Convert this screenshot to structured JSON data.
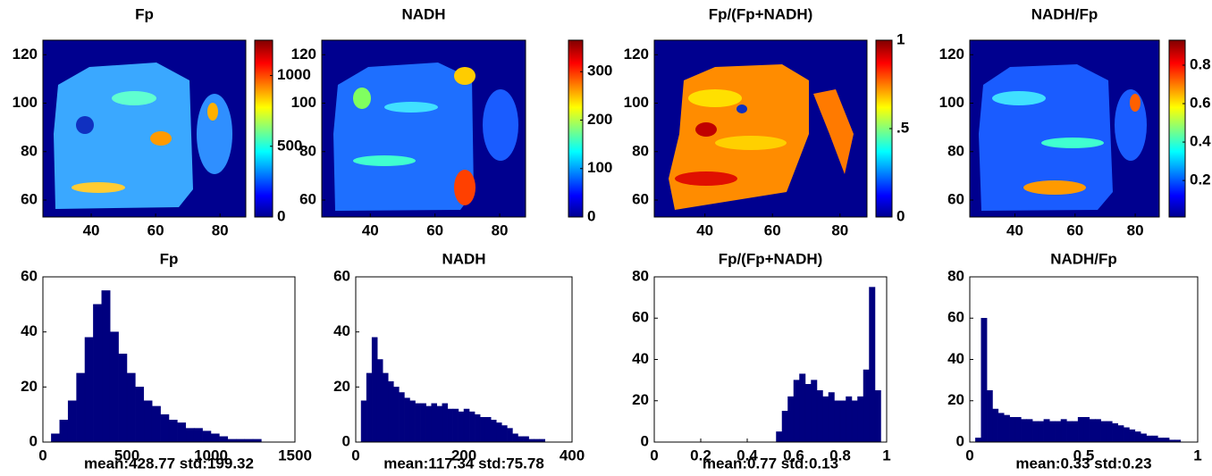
{
  "chart_data": [
    {
      "type": "heatmap",
      "title": "Fp",
      "xlim": [
        25,
        88
      ],
      "ylim": [
        53,
        126
      ],
      "xticks": [
        40,
        60,
        80
      ],
      "yticks": [
        60,
        80,
        100,
        120
      ],
      "clim": [
        0,
        1250
      ],
      "cticks": [
        0,
        500,
        1000
      ]
    },
    {
      "type": "heatmap",
      "title": "NADH",
      "xlim": [
        25,
        88
      ],
      "ylim": [
        53,
        126
      ],
      "xticks": [
        40,
        60,
        80
      ],
      "yticks": [
        60,
        80,
        100,
        120
      ],
      "clim": [
        0,
        365
      ],
      "cticks": [
        0,
        100,
        200,
        300
      ]
    },
    {
      "type": "heatmap",
      "title": "Fp/(Fp+NADH)",
      "xlim": [
        25,
        88
      ],
      "ylim": [
        53,
        126
      ],
      "xticks": [
        40,
        60,
        80
      ],
      "yticks": [
        60,
        80,
        100,
        120
      ],
      "clim": [
        0,
        1
      ],
      "cticks": [
        0,
        {
          "value": 0.5,
          "label": ".5"
        },
        1
      ]
    },
    {
      "type": "heatmap",
      "title": "NADH/Fp",
      "xlim": [
        25,
        88
      ],
      "ylim": [
        53,
        126
      ],
      "xticks": [
        40,
        60,
        80
      ],
      "yticks": [
        60,
        80,
        100,
        120
      ],
      "clim": [
        0.01,
        0.93
      ],
      "cticks": [
        0.2,
        0.4,
        0.6,
        0.8
      ]
    },
    {
      "type": "histogram",
      "title": "Fp",
      "xlabel": "mean:428.77 std:199.32",
      "color": "#00007f",
      "bins": [
        0,
        50,
        100,
        150,
        200,
        250,
        300,
        350,
        400,
        450,
        500,
        550,
        600,
        650,
        700,
        750,
        800,
        850,
        900,
        950,
        1000,
        1050,
        1100,
        1150,
        1200,
        1250,
        1300,
        1350,
        1400,
        1450,
        1500
      ],
      "values": [
        0,
        3,
        8,
        15,
        25,
        38,
        50,
        55,
        40,
        32,
        25,
        20,
        15,
        13,
        10,
        8,
        7,
        5,
        5,
        4,
        3,
        2,
        1,
        1,
        1,
        1,
        0,
        0,
        0,
        0
      ],
      "xlim": [
        0,
        1500
      ],
      "ylim": [
        0,
        60
      ],
      "xticks": [
        0,
        500,
        1000,
        1500
      ],
      "yticks": [
        0,
        20,
        40,
        60
      ]
    },
    {
      "type": "histogram",
      "title": "NADH",
      "xlabel": "mean:117.34 std:75.78",
      "color": "#00007f",
      "bins": [
        0,
        10,
        20,
        30,
        40,
        50,
        60,
        70,
        80,
        90,
        100,
        110,
        120,
        130,
        140,
        150,
        160,
        170,
        180,
        190,
        200,
        210,
        220,
        230,
        240,
        250,
        260,
        270,
        280,
        290,
        300,
        310,
        320,
        330,
        340,
        350,
        360,
        370,
        380,
        390,
        400
      ],
      "values": [
        0,
        15,
        25,
        38,
        30,
        25,
        22,
        20,
        18,
        16,
        15,
        14,
        14,
        13,
        14,
        13,
        14,
        12,
        12,
        11,
        12,
        11,
        10,
        9,
        9,
        8,
        7,
        6,
        5,
        3,
        2,
        2,
        1,
        1,
        1,
        0,
        0,
        0,
        0,
        0
      ],
      "xlim": [
        0,
        400
      ],
      "ylim": [
        0,
        60
      ],
      "xticks": [
        0,
        200,
        400
      ],
      "yticks": [
        0,
        20,
        40,
        60
      ]
    },
    {
      "type": "histogram",
      "title": "Fp/(Fp+NADH)",
      "xlabel": "mean:0.77 std:0.13",
      "color": "#00007f",
      "bins": [
        0,
        0.025,
        0.05,
        0.075,
        0.1,
        0.125,
        0.15,
        0.175,
        0.2,
        0.225,
        0.25,
        0.275,
        0.3,
        0.325,
        0.35,
        0.375,
        0.4,
        0.425,
        0.45,
        0.475,
        0.5,
        0.525,
        0.55,
        0.575,
        0.6,
        0.625,
        0.65,
        0.675,
        0.7,
        0.725,
        0.75,
        0.775,
        0.8,
        0.825,
        0.85,
        0.875,
        0.9,
        0.925,
        0.95,
        0.975,
        1
      ],
      "values": [
        0,
        0,
        0,
        0,
        0,
        0,
        0,
        0,
        0,
        0,
        0,
        0,
        0,
        0,
        0,
        0,
        0,
        0,
        0,
        0,
        0,
        5,
        15,
        22,
        30,
        33,
        28,
        30,
        25,
        22,
        24,
        20,
        20,
        22,
        20,
        22,
        35,
        75,
        25,
        0
      ],
      "xlim": [
        0,
        1
      ],
      "ylim": [
        0,
        80
      ],
      "xticks": [
        0,
        0.2,
        0.4,
        0.6,
        0.8,
        1
      ],
      "yticks": [
        0,
        20,
        40,
        60,
        80
      ]
    },
    {
      "type": "histogram",
      "title": "NADH/Fp",
      "xlabel": "mean:0.33 std:0.23",
      "color": "#00007f",
      "bins": [
        0,
        0.025,
        0.05,
        0.075,
        0.1,
        0.125,
        0.15,
        0.175,
        0.2,
        0.225,
        0.25,
        0.275,
        0.3,
        0.325,
        0.35,
        0.375,
        0.4,
        0.425,
        0.45,
        0.475,
        0.5,
        0.525,
        0.55,
        0.575,
        0.6,
        0.625,
        0.65,
        0.675,
        0.7,
        0.725,
        0.75,
        0.775,
        0.8,
        0.825,
        0.85,
        0.875,
        0.9,
        0.925,
        0.95,
        0.975,
        1
      ],
      "values": [
        0,
        2,
        60,
        25,
        16,
        14,
        13,
        12,
        12,
        11,
        11,
        10,
        10,
        11,
        10,
        10,
        11,
        10,
        10,
        12,
        12,
        11,
        11,
        10,
        10,
        9,
        8,
        7,
        6,
        5,
        4,
        3,
        3,
        2,
        2,
        1,
        1,
        0,
        0,
        0
      ],
      "xlim": [
        0,
        1
      ],
      "ylim": [
        0,
        80
      ],
      "xticks": [
        0,
        0.5,
        1
      ],
      "yticks": [
        0,
        20,
        40,
        60,
        80
      ]
    }
  ]
}
